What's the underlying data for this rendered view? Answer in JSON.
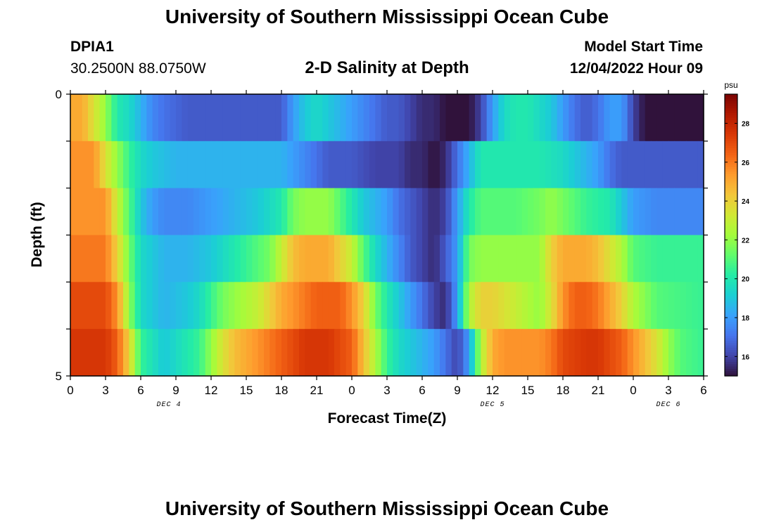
{
  "header": {
    "title": "University of Southern Mississippi Ocean Cube",
    "station": "DPIA1",
    "coords": "30.2500N  88.0750W",
    "subtitle": "2-D Salinity at Depth",
    "start_label": "Model Start Time",
    "start_value": "12/04/2022 Hour 09"
  },
  "footer": {
    "title": "University of Southern Mississippi Ocean Cube"
  },
  "chart_data": {
    "type": "heatmap",
    "title": "2-D Salinity at Depth",
    "xlabel": "Forecast Time(Z)",
    "ylabel": "Depth (ft)",
    "x_tick_labels": [
      "0",
      "3",
      "6",
      "9",
      "12",
      "15",
      "18",
      "21",
      "0",
      "3",
      "6",
      "9",
      "12",
      "15",
      "18",
      "21",
      "0",
      "3",
      "6"
    ],
    "date_labels": [
      {
        "label": "DEC 4",
        "at_tick": 2.8
      },
      {
        "label": "DEC 5",
        "at_tick": 12.0
      },
      {
        "label": "DEC 6",
        "at_tick": 17.0
      }
    ],
    "y_tick_labels": [
      "0",
      "5"
    ],
    "xlim_hours": [
      0,
      54
    ],
    "ylim_ft": [
      0,
      5
    ],
    "colorbar": {
      "unit": "psu",
      "min": 15,
      "max": 29.5,
      "tick_labels": [
        "16",
        "18",
        "20",
        "22",
        "24",
        "26",
        "28"
      ],
      "colors": [
        "#30123b",
        "#4145ab",
        "#4675ed",
        "#39a2fc",
        "#1bcfd4",
        "#24eca6",
        "#61fc6c",
        "#a4fc3b",
        "#d1e834",
        "#f3c63a",
        "#fe9b2d",
        "#f36315",
        "#d93806",
        "#b11901",
        "#7a0403"
      ]
    },
    "depth_layers_ft": [
      0,
      1,
      2,
      3,
      4,
      5
    ],
    "series": [
      {
        "name": "0 ft",
        "times_h": [
          0,
          1,
          2,
          3,
          4,
          5,
          6,
          7,
          8,
          10,
          14,
          18,
          19,
          20,
          21,
          22,
          24,
          26,
          27,
          28,
          29,
          30,
          31,
          32,
          33,
          34,
          35,
          36,
          37,
          38,
          39,
          40,
          41,
          42,
          43,
          44,
          45,
          46,
          47,
          47.5,
          48,
          49,
          50,
          51,
          54
        ],
        "salinity": [
          25,
          25,
          23.5,
          22,
          20,
          19.5,
          18.5,
          17.5,
          17,
          16.5,
          16.5,
          16.5,
          18,
          19,
          19.5,
          19,
          18,
          17,
          16.5,
          16.5,
          16,
          15.5,
          15.5,
          15,
          15,
          15,
          16,
          18,
          19.5,
          20,
          20,
          19.5,
          19,
          18,
          17,
          16.5,
          17,
          18,
          18,
          17,
          16,
          15,
          15,
          15,
          15
        ]
      },
      {
        "name": "1 ft",
        "times_h": [
          0,
          2,
          3,
          4,
          5,
          6,
          7,
          9,
          15,
          18,
          19,
          20,
          21,
          22,
          23,
          24,
          26,
          27,
          28,
          29,
          30,
          31,
          32,
          33,
          34,
          35,
          36,
          37,
          38,
          40,
          42,
          44,
          45,
          46,
          47,
          48,
          50,
          52,
          54
        ],
        "salinity": [
          25.5,
          25.5,
          23.5,
          22,
          20.5,
          19.5,
          19,
          18.5,
          18.5,
          18.5,
          18,
          17.5,
          17,
          16.5,
          16.5,
          16.5,
          16,
          16,
          16,
          15.5,
          15.5,
          15,
          15.5,
          17,
          18.5,
          20,
          20,
          20,
          20,
          20,
          19.5,
          18.5,
          18,
          17,
          16.5,
          16.5,
          16.5,
          16.5,
          16.5
        ]
      },
      {
        "name": "2 ft",
        "times_h": [
          0,
          3,
          4,
          5,
          6,
          7,
          8,
          10,
          12,
          14,
          16,
          17,
          18,
          19,
          20,
          21,
          22,
          23,
          24,
          25,
          26,
          27,
          28,
          29,
          30,
          31,
          32,
          33,
          34,
          35,
          36,
          38,
          40,
          41,
          42,
          43,
          44,
          46,
          47,
          48,
          50,
          54
        ],
        "salinity": [
          25.5,
          25.5,
          23,
          21,
          19,
          18,
          17.5,
          17.5,
          18,
          18.5,
          19,
          19.5,
          20,
          21.5,
          22,
          22,
          22,
          21,
          20,
          19,
          18.5,
          18,
          17,
          16.5,
          16,
          15.5,
          16,
          18,
          20,
          21,
          21,
          21,
          21.5,
          22,
          21.5,
          21,
          20.5,
          20,
          19,
          18,
          17.5,
          17.5
        ]
      },
      {
        "name": "3 ft",
        "times_h": [
          0,
          3,
          4,
          5,
          6,
          8,
          10,
          12,
          14,
          15,
          16,
          17,
          18,
          19,
          20,
          21,
          22,
          23,
          24,
          25,
          26,
          27,
          28,
          29,
          30,
          31,
          32,
          33,
          34,
          35,
          36,
          38,
          40,
          41,
          42,
          43,
          44,
          45,
          46,
          47,
          48,
          50,
          54
        ],
        "salinity": [
          26,
          26,
          24,
          21.5,
          19.5,
          18.5,
          18.5,
          19,
          20,
          20.5,
          21,
          21.5,
          23,
          24.5,
          25,
          25,
          25,
          24,
          23,
          21,
          19.5,
          18.5,
          17.5,
          16.5,
          16,
          15.5,
          16.5,
          18,
          21.5,
          22,
          22,
          22,
          22,
          24,
          25,
          25,
          25,
          24.5,
          23.5,
          22.5,
          21,
          20.5,
          20.5
        ]
      },
      {
        "name": "4 ft",
        "times_h": [
          0,
          3,
          4,
          5,
          6,
          8,
          10,
          11,
          12,
          13,
          14,
          15,
          16,
          17,
          18,
          19,
          20,
          21,
          22,
          23,
          24,
          25,
          26,
          27,
          28,
          29,
          30,
          31,
          32,
          33,
          34,
          35,
          36,
          38,
          40,
          41,
          42,
          43,
          44,
          45,
          46,
          47,
          48,
          50,
          54
        ],
        "salinity": [
          27,
          27,
          25.5,
          22,
          19.5,
          18.5,
          19,
          19.5,
          20.5,
          21.5,
          22,
          22.5,
          23,
          24,
          25,
          25.5,
          26,
          26.5,
          26.5,
          26.5,
          25.5,
          24,
          21.5,
          20,
          19,
          18,
          17,
          16,
          15.5,
          18,
          22.5,
          24,
          24,
          23,
          22,
          23.5,
          25.5,
          26.5,
          26.5,
          26,
          25,
          24,
          22.5,
          21,
          20.5
        ]
      },
      {
        "name": "5 ft",
        "times_h": [
          0,
          3,
          4,
          5,
          6,
          8,
          9,
          10,
          11,
          12,
          13,
          14,
          15,
          16,
          17,
          18,
          19,
          20,
          21,
          22,
          23,
          24,
          25,
          26,
          27,
          28,
          29,
          30,
          31,
          32,
          33,
          34,
          35,
          36,
          37,
          38,
          40,
          41,
          42,
          44,
          45,
          46,
          47,
          48,
          50,
          51,
          52,
          54
        ],
        "salinity": [
          27.5,
          27.5,
          26.5,
          24,
          20.5,
          19,
          19.5,
          20,
          20.5,
          22,
          23.5,
          24.5,
          25,
          25.5,
          26,
          26.5,
          27,
          27.5,
          27.5,
          27.5,
          27,
          26.5,
          24.5,
          22.5,
          20.5,
          19.5,
          19,
          18.5,
          18,
          17,
          16,
          18,
          22.5,
          25,
          25.5,
          25.5,
          25.5,
          26,
          27,
          27.5,
          27.5,
          27,
          26.5,
          25.5,
          23.5,
          22,
          21,
          20.5
        ]
      }
    ]
  }
}
